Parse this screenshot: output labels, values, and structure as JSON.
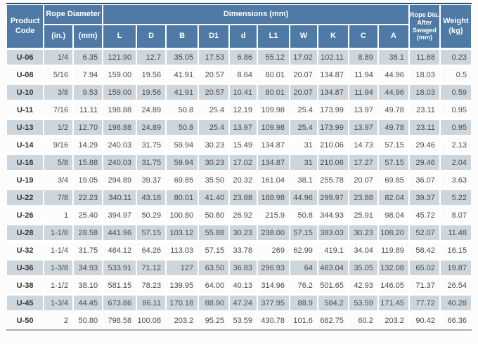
{
  "colors": {
    "header_bg": "#4e7aa5",
    "stripe_bg": "#cdd6dc",
    "top_border": "#2e4d6b",
    "bottom_border": "#a9aeb3",
    "header_text": "#ffffff",
    "cell_text": "#4b4b4b"
  },
  "table": {
    "header": {
      "product_code": "Product Code",
      "rope_diameter": "Rope Diameter",
      "rope_diameter_sub": [
        "(in.)",
        "(mm)"
      ],
      "dimensions": "Dimensions (mm)",
      "dimension_cols": [
        "L",
        "D",
        "B",
        "D1",
        "d",
        "L1",
        "W",
        "K",
        "C",
        "A"
      ],
      "after_swaged": "Rope Dia. After Swaged (mm)",
      "weight": "Weight (kg)"
    },
    "columns": [
      "code",
      "in",
      "mm",
      "L",
      "D",
      "B",
      "D1",
      "d",
      "L1",
      "W",
      "K",
      "C",
      "A",
      "swaged",
      "weight"
    ],
    "rows": [
      [
        "U-06",
        "1/4",
        "6.35",
        "121.90",
        "12.7",
        "35.05",
        "17.53",
        "6.86",
        "55.12",
        "17.02",
        "102.11",
        "8.89",
        "38.1",
        "11.68",
        "0.23"
      ],
      [
        "U-08",
        "5/16",
        "7.94",
        "159.00",
        "19.56",
        "41.91",
        "20.57",
        "8.64",
        "80.01",
        "20.07",
        "134.87",
        "11.94",
        "44.96",
        "18.03",
        "0.5"
      ],
      [
        "U-10",
        "3/8",
        "9.53",
        "159.00",
        "19.56",
        "41.91",
        "20.57",
        "10.41",
        "80.01",
        "20.07",
        "134.87",
        "11.94",
        "44.96",
        "18.03",
        "0.59"
      ],
      [
        "U-11",
        "7/16",
        "11.11",
        "198.88",
        "24.89",
        "50.8",
        "25.4",
        "12.19",
        "109.98",
        "25.4",
        "173.99",
        "13.97",
        "49.78",
        "23.11",
        "0.95"
      ],
      [
        "U-13",
        "1/2",
        "12.70",
        "198.88",
        "24.89",
        "50.8",
        "25.4",
        "13.97",
        "109.98",
        "25.4",
        "173.99",
        "13.97",
        "49.78",
        "23.11",
        "0.95"
      ],
      [
        "U-14",
        "9/16",
        "14.29",
        "240.03",
        "31.75",
        "59.94",
        "30.23",
        "15.49",
        "134.87",
        "31",
        "210.06",
        "14.73",
        "57.15",
        "29.46",
        "2.13"
      ],
      [
        "U-16",
        "5/8",
        "15.88",
        "240.03",
        "31.75",
        "59.94",
        "30.23",
        "17.02",
        "134.87",
        "31",
        "210.06",
        "17.27",
        "57.15",
        "29.46",
        "2.04"
      ],
      [
        "U-19",
        "3/4",
        "19.05",
        "294.89",
        "39.37",
        "69.85",
        "35.50",
        "20.32",
        "161.04",
        "38.1",
        "255.78",
        "20.07",
        "69.85",
        "36.07",
        "3.63"
      ],
      [
        "U-22",
        "7/8",
        "22.23",
        "340.11",
        "43.18",
        "80.01",
        "41.40",
        "23.88",
        "188.98",
        "44.96",
        "299.97",
        "23.88",
        "82.04",
        "39.37",
        "5.22"
      ],
      [
        "U-26",
        "1",
        "25.40",
        "394.97",
        "50.29",
        "100.80",
        "50.80",
        "26.92",
        "215.9",
        "50.8",
        "344.93",
        "25.91",
        "98.04",
        "45.72",
        "8.07"
      ],
      [
        "U-28",
        "1-1/8",
        "28.58",
        "441.96",
        "57.15",
        "103.12",
        "55.88",
        "30.23",
        "238.00",
        "57.15",
        "383.03",
        "30.23",
        "108.20",
        "52.07",
        "11.48"
      ],
      [
        "U-32",
        "1-1/4",
        "31.75",
        "484.12",
        "64.26",
        "113.03",
        "57.15",
        "33.78",
        "269",
        "62.99",
        "419.1",
        "34.04",
        "119.89",
        "58.42",
        "16.15"
      ],
      [
        "U-36",
        "1-3/8",
        "34.93",
        "533.91",
        "71.12",
        "127",
        "63.50",
        "36.83",
        "296.93",
        "64",
        "463.04",
        "35.05",
        "132.08",
        "65.02",
        "19.87"
      ],
      [
        "U-38",
        "1-1/2",
        "38.10",
        "581.15",
        "78.23",
        "139.95",
        "64.00",
        "40.13",
        "314.96",
        "76.2",
        "501.65",
        "42.93",
        "146.05",
        "71.37",
        "26.54"
      ],
      [
        "U-45",
        "1-3/4",
        "44.45",
        "673.86",
        "86.11",
        "170.18",
        "88.90",
        "47.24",
        "377.95",
        "88.9",
        "584.2",
        "53.59",
        "171.45",
        "77.72",
        "40.28"
      ],
      [
        "U-50",
        "2",
        "50.80",
        "798.58",
        "100.08",
        "203.2",
        "95.25",
        "53.59",
        "430.78",
        "101.6",
        "682.75",
        "60.2",
        "203.2",
        "90.42",
        "66.36"
      ]
    ]
  }
}
